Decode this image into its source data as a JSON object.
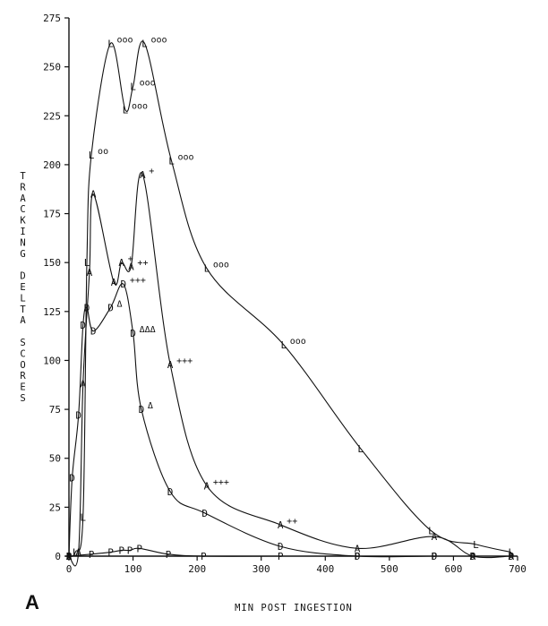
{
  "panel_label": "A",
  "chart_data": {
    "type": "line",
    "title": "",
    "xlabel": "MIN POST INGESTION",
    "ylabel": "TRACKING DELTA SCORES",
    "xlim": [
      0,
      700
    ],
    "ylim": [
      0,
      275
    ],
    "x_ticks": [
      "0",
      "100",
      "200",
      "300",
      "400",
      "500",
      "600",
      "700"
    ],
    "y_ticks": [
      "0",
      "25",
      "50",
      "75",
      "100",
      "125",
      "150",
      "175",
      "200",
      "225",
      "250",
      "275"
    ],
    "grid": false,
    "series": [
      {
        "name": "L",
        "marker": "L",
        "points": [
          {
            "x": 0,
            "y": 0
          },
          {
            "x": 10,
            "y": 2
          },
          {
            "x": 22,
            "y": 20
          },
          {
            "x": 28,
            "y": 150,
            "annot": ""
          },
          {
            "x": 35,
            "y": 205,
            "annot": "oo"
          },
          {
            "x": 65,
            "y": 262,
            "annot": "ooo"
          },
          {
            "x": 88,
            "y": 228,
            "annot": "ooo"
          },
          {
            "x": 100,
            "y": 240,
            "annot": "ooo"
          },
          {
            "x": 118,
            "y": 262,
            "annot": "ooo"
          },
          {
            "x": 160,
            "y": 202,
            "annot": "ooo"
          },
          {
            "x": 215,
            "y": 147,
            "annot": "ooo"
          },
          {
            "x": 335,
            "y": 108,
            "annot": "ooo"
          },
          {
            "x": 455,
            "y": 55,
            "annot": ""
          },
          {
            "x": 565,
            "y": 13,
            "annot": ""
          },
          {
            "x": 635,
            "y": 6,
            "annot": ""
          },
          {
            "x": 690,
            "y": 2,
            "annot": ""
          }
        ]
      },
      {
        "name": "A",
        "marker": "A",
        "points": [
          {
            "x": 0,
            "y": 0
          },
          {
            "x": 15,
            "y": 2
          },
          {
            "x": 22,
            "y": 88
          },
          {
            "x": 32,
            "y": 145
          },
          {
            "x": 38,
            "y": 185
          },
          {
            "x": 70,
            "y": 140
          },
          {
            "x": 82,
            "y": 150,
            "annot": "+"
          },
          {
            "x": 97,
            "y": 148,
            "annot": "++"
          },
          {
            "x": 115,
            "y": 195,
            "annot": "+"
          },
          {
            "x": 158,
            "y": 98,
            "annot": "+++"
          },
          {
            "x": 215,
            "y": 36,
            "annot": "+++"
          },
          {
            "x": 330,
            "y": 16,
            "annot": "++"
          },
          {
            "x": 450,
            "y": 4
          },
          {
            "x": 570,
            "y": 10
          },
          {
            "x": 630,
            "y": 0
          },
          {
            "x": 690,
            "y": 0
          }
        ]
      },
      {
        "name": "D",
        "marker": "D",
        "points": [
          {
            "x": 0,
            "y": 0
          },
          {
            "x": 5,
            "y": 40
          },
          {
            "x": 15,
            "y": 72
          },
          {
            "x": 22,
            "y": 118
          },
          {
            "x": 28,
            "y": 127
          },
          {
            "x": 38,
            "y": 115
          },
          {
            "x": 65,
            "y": 127,
            "annot": "Δ"
          },
          {
            "x": 85,
            "y": 139,
            "annot": "+++"
          },
          {
            "x": 100,
            "y": 114,
            "annot": "ΔΔΔ"
          },
          {
            "x": 113,
            "y": 75,
            "annot": "Δ"
          },
          {
            "x": 158,
            "y": 33
          },
          {
            "x": 212,
            "y": 22
          },
          {
            "x": 330,
            "y": 5
          },
          {
            "x": 450,
            "y": 0
          },
          {
            "x": 570,
            "y": 0
          },
          {
            "x": 630,
            "y": 0
          },
          {
            "x": 690,
            "y": 0
          }
        ]
      },
      {
        "name": "P",
        "marker": "P",
        "points": [
          {
            "x": 0,
            "y": 0
          },
          {
            "x": 35,
            "y": 1
          },
          {
            "x": 65,
            "y": 2
          },
          {
            "x": 82,
            "y": 3
          },
          {
            "x": 95,
            "y": 3
          },
          {
            "x": 110,
            "y": 4
          },
          {
            "x": 155,
            "y": 1
          },
          {
            "x": 210,
            "y": 0
          },
          {
            "x": 330,
            "y": 0
          },
          {
            "x": 450,
            "y": 0
          },
          {
            "x": 570,
            "y": 0
          },
          {
            "x": 630,
            "y": 0
          },
          {
            "x": 690,
            "y": 0
          }
        ]
      }
    ]
  }
}
